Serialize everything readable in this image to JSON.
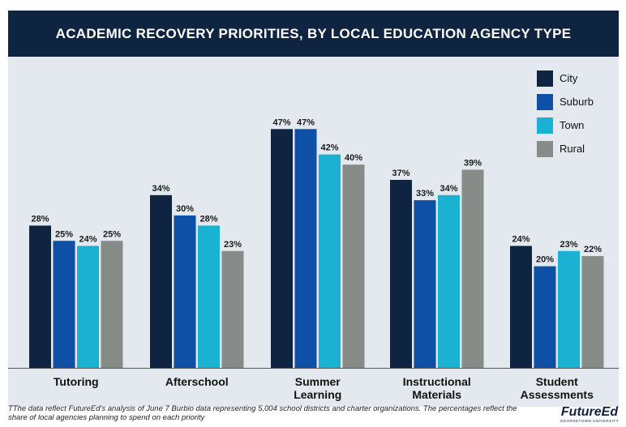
{
  "chart_data": {
    "type": "bar",
    "title": "ACADEMIC RECOVERY PRIORITIES, BY LOCAL EDUCATION AGENCY TYPE",
    "categories": [
      "Tutoring",
      "Afterschool",
      "Summer Learning",
      "Instructional Materials",
      "Student Assessments"
    ],
    "category_lines": [
      [
        "Tutoring"
      ],
      [
        "Afterschool"
      ],
      [
        "Summer",
        "Learning"
      ],
      [
        "Instructional",
        "Materials"
      ],
      [
        "Student",
        "Assessments"
      ]
    ],
    "series": [
      {
        "name": "City",
        "color": "#0f2440",
        "values": [
          28,
          34,
          47,
          37,
          24
        ],
        "labels": [
          "28%",
          "34%",
          "47%",
          "37%",
          "24%"
        ]
      },
      {
        "name": "Suburb",
        "color": "#0d50a5",
        "values": [
          25,
          30,
          47,
          33,
          20
        ],
        "labels": [
          "25%",
          "30%",
          "47%",
          "33%",
          "20%"
        ]
      },
      {
        "name": "Town",
        "color": "#1bb1d3",
        "values": [
          24,
          28,
          42,
          34,
          23
        ],
        "labels": [
          "24%",
          "28%",
          "42%",
          "34%",
          "23%"
        ]
      },
      {
        "name": "Rural",
        "color": "#878c89",
        "values": [
          25,
          23,
          40,
          39,
          22
        ],
        "labels": [
          "25%",
          "23%",
          "40%",
          "39%",
          "22%"
        ]
      }
    ],
    "ylim": [
      0,
      50
    ],
    "grid": false,
    "legend_position": "top-right",
    "footnote": "TThe data reflect FutureEd's analysis of June 7 Burbio data representing 5,004 school districts and charter organizations. The percentages reflect the share of local agencies planning to spend on each priority"
  },
  "brand": {
    "name": "FutureEd",
    "subtitle": "GEORGETOWN UNIVERSITY"
  }
}
